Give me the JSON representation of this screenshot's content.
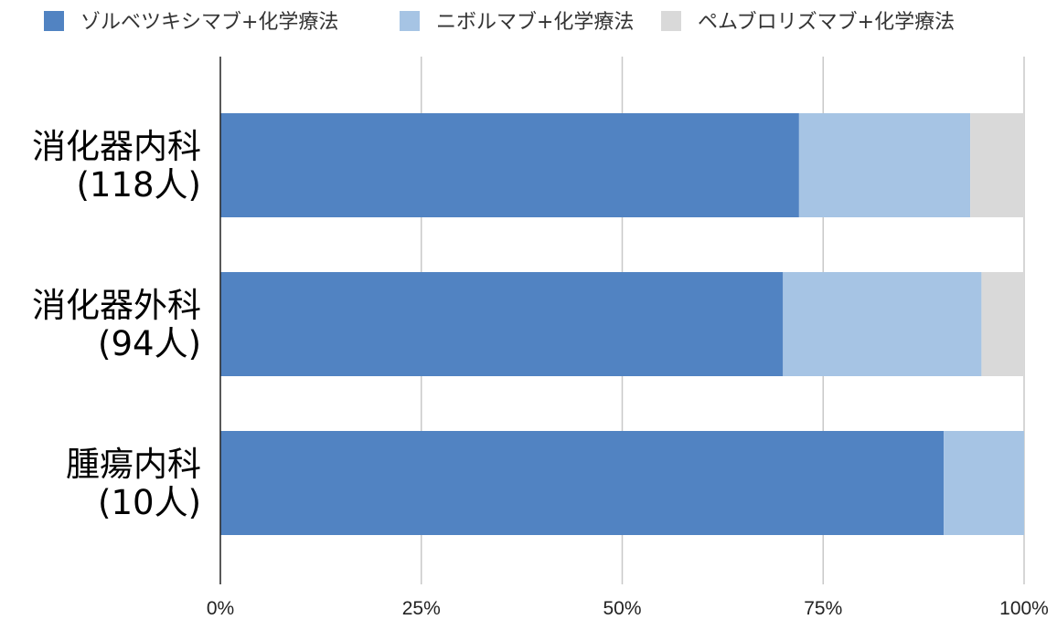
{
  "chart_data": {
    "type": "bar",
    "orientation": "horizontal",
    "stacked": true,
    "normalized": true,
    "categories": [
      [
        "消化器内科",
        "(118人)"
      ],
      [
        "消化器外科",
        "(94人)"
      ],
      [
        "腫瘍内科",
        "(10人)"
      ]
    ],
    "series": [
      {
        "name": "ゾルベツキシマブ+化学療法",
        "color": "#5183c2",
        "values": [
          72,
          70,
          90
        ]
      },
      {
        "name": "ニボルマブ+化学療法",
        "color": "#a6c4e4",
        "values": [
          21.3,
          24.7,
          10
        ]
      },
      {
        "name": "ペムブロリズマブ+化学療法",
        "color": "#d9d9d9",
        "values": [
          6.7,
          5.3,
          0
        ]
      }
    ],
    "xlim": [
      0,
      100
    ],
    "x_ticks": [
      "0%",
      "25%",
      "50%",
      "75%",
      "100%"
    ],
    "grid": true,
    "legend_position": "top"
  }
}
